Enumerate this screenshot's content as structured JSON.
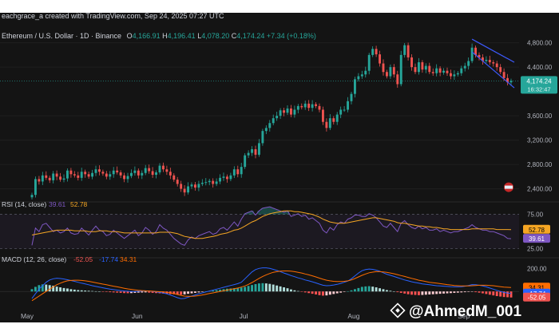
{
  "header": {
    "meta": "eachgrace_a created with TradingView.com, Sep 24, 2025 07:27 UTC",
    "symbol": "Ethereum / U.S. Dollar · 1D · Binance",
    "o_label": "O",
    "o_value": "4,166.91",
    "h_label": "H",
    "h_value": "4,196.41",
    "l_label": "L",
    "l_value": "4,078.20",
    "c_label": "C",
    "c_value": "4,174.24",
    "change": "+7.34 (+0.18%)"
  },
  "colors": {
    "up": "#26a69a",
    "down": "#ef5350",
    "price_tag": "#26a69a",
    "rsi_line": "#7e57c2",
    "rsi_ma": "#f5a623",
    "macd_line": "#2962ff",
    "signal_line": "#ff6d00",
    "background": "#141414"
  },
  "chart_data": [
    {
      "type": "candlestick",
      "title": "Ethereum / U.S. Dollar · 1D · Binance",
      "y_ticks": [
        "4,800.00",
        "4,400.00",
        "3,600.00",
        "3,200.00",
        "2,800.00",
        "2,400.00"
      ],
      "y_tick_values": [
        4800,
        4400,
        3600,
        3200,
        2800,
        2400
      ],
      "ylim": [
        2250,
        4900
      ],
      "x_ticks": [
        "May",
        "Jun",
        "Jul",
        "Aug",
        "Sep"
      ],
      "last_price": "4,174.24",
      "countdown": "16:32:47",
      "closes": [
        2300,
        2560,
        2520,
        2620,
        2580,
        2540,
        2650,
        2600,
        2550,
        2570,
        2700,
        2640,
        2620,
        2580,
        2680,
        2640,
        2600,
        2660,
        2720,
        2680,
        2650,
        2600,
        2640,
        2700,
        2670,
        2620,
        2560,
        2610,
        2660,
        2700,
        2620,
        2660,
        2740,
        2690,
        2630,
        2670,
        2780,
        2720,
        2680,
        2620,
        2550,
        2480,
        2400,
        2340,
        2440,
        2470,
        2420,
        2480,
        2500,
        2510,
        2530,
        2480,
        2520,
        2580,
        2600,
        2560,
        2620,
        2720,
        2640,
        2760,
        2950,
        2990,
        3050,
        2960,
        3150,
        3350,
        3400,
        3480,
        3560,
        3600,
        3690,
        3650,
        3720,
        3620,
        3700,
        3760,
        3740,
        3800,
        3730,
        3790,
        3760,
        3700,
        3500,
        3400,
        3560,
        3500,
        3620,
        3700,
        3700,
        3840,
        3960,
        4200,
        4250,
        4280,
        4340,
        4600,
        4700,
        4610,
        4460,
        4320,
        4250,
        4400,
        4280,
        4120,
        4600,
        4760,
        4560,
        4400,
        4320,
        4480,
        4360,
        4420,
        4320,
        4300,
        4380,
        4310,
        4340,
        4300,
        4250,
        4280,
        4300,
        4380,
        4420,
        4500,
        4720,
        4600,
        4560,
        4500,
        4520,
        4480,
        4460,
        4400,
        4320,
        4220,
        4150,
        4174.24
      ]
    },
    {
      "type": "line",
      "title": "RSI (14, close)",
      "values_text": [
        "39.61",
        "52.78"
      ],
      "y_ticks": [
        "75.00",
        "25.00"
      ],
      "y_tick_values": [
        75,
        25
      ],
      "ylim": [
        20,
        85
      ],
      "tags": [
        {
          "label": "52.78",
          "value": 52.78
        },
        {
          "label": "39.61",
          "value": 39.61
        }
      ],
      "series": [
        {
          "name": "RSI",
          "values": [
            30,
            55,
            50,
            60,
            62,
            56,
            50,
            52,
            48,
            50,
            55,
            48,
            46,
            47,
            55,
            50,
            45,
            52,
            58,
            52,
            50,
            44,
            46,
            52,
            48,
            44,
            40,
            44,
            48,
            52,
            44,
            48,
            56,
            52,
            46,
            50,
            60,
            55,
            52,
            46,
            40,
            36,
            32,
            30,
            38,
            42,
            40,
            44,
            46,
            48,
            50,
            46,
            48,
            54,
            56,
            52,
            58,
            64,
            58,
            68,
            76,
            78,
            80,
            74,
            80,
            84,
            85,
            86,
            84,
            82,
            80,
            78,
            80,
            72,
            74,
            76,
            72,
            74,
            68,
            70,
            66,
            62,
            52,
            48,
            56,
            52,
            60,
            64,
            62,
            68,
            70,
            74,
            74,
            72,
            72,
            76,
            74,
            70,
            64,
            58,
            56,
            62,
            56,
            50,
            62,
            66,
            60,
            56,
            54,
            58,
            54,
            56,
            52,
            52,
            54,
            50,
            52,
            50,
            48,
            50,
            50,
            52,
            54,
            56,
            60,
            56,
            54,
            52,
            52,
            50,
            50,
            48,
            46,
            44,
            40,
            39.61
          ]
        },
        {
          "name": "RSI-based MA",
          "values": [
            45,
            46,
            47,
            48,
            49,
            50,
            51,
            52,
            52,
            52,
            52,
            52,
            51,
            51,
            51,
            51,
            50,
            50,
            50,
            51,
            51,
            51,
            50,
            50,
            50,
            49,
            48,
            48,
            48,
            48,
            48,
            48,
            48,
            48,
            48,
            48,
            49,
            49,
            49,
            49,
            48,
            47,
            45,
            43,
            42,
            41,
            40,
            40,
            40,
            41,
            42,
            43,
            44,
            46,
            47,
            48,
            50,
            52,
            53,
            55,
            58,
            61,
            64,
            66,
            69,
            72,
            74,
            76,
            77,
            78,
            79,
            80,
            80,
            80,
            79,
            79,
            78,
            77,
            76,
            75,
            73,
            71,
            68,
            66,
            64,
            63,
            62,
            62,
            62,
            63,
            64,
            65,
            66,
            67,
            68,
            69,
            70,
            70,
            69,
            68,
            67,
            66,
            65,
            63,
            62,
            62,
            61,
            60,
            59,
            58,
            58,
            57,
            57,
            56,
            56,
            55,
            54,
            54,
            53,
            53,
            53,
            53,
            53,
            53,
            54,
            54,
            54,
            54,
            54,
            54,
            54,
            53,
            53,
            53,
            53,
            52.78
          ]
        }
      ]
    },
    {
      "type": "bar",
      "title": "MACD (12, 26, close)",
      "values_text": [
        "-52.05",
        "-17.74",
        "34.31"
      ],
      "y_ticks": [
        "200.00"
      ],
      "y_tick_values": [
        200
      ],
      "ylim": [
        -130,
        230
      ],
      "x_ticks": [
        "May",
        "Jun",
        "Jul",
        "Aug",
        "Sep"
      ],
      "tags": [
        {
          "label": "34.31",
          "value": 34.31
        },
        {
          "label": "-17.74",
          "value": -17.74
        },
        {
          "label": "-52.05",
          "value": -52.05
        }
      ],
      "series": [
        {
          "name": "Histogram",
          "values": [
            20,
            40,
            55,
            62,
            60,
            55,
            50,
            42,
            36,
            30,
            26,
            20,
            16,
            12,
            10,
            8,
            6,
            4,
            2,
            0,
            -2,
            -4,
            -6,
            -8,
            -10,
            -12,
            -14,
            -15,
            -14,
            -12,
            -10,
            -9,
            -8,
            -10,
            -12,
            -14,
            -16,
            -18,
            -20,
            -22,
            -24,
            -26,
            -28,
            -25,
            -20,
            -16,
            -12,
            -8,
            -4,
            0,
            4,
            8,
            12,
            16,
            20,
            24,
            26,
            28,
            30,
            34,
            40,
            48,
            56,
            64,
            70,
            72,
            70,
            66,
            60,
            52,
            44,
            36,
            28,
            18,
            10,
            4,
            -2,
            -8,
            -14,
            -20,
            -26,
            -32,
            -36,
            -34,
            -28,
            -22,
            -16,
            -10,
            -4,
            2,
            10,
            20,
            30,
            40,
            44,
            46,
            42,
            36,
            28,
            20,
            12,
            6,
            0,
            -6,
            -12,
            -18,
            -24,
            -28,
            -30,
            -32,
            -30,
            -28,
            -26,
            -24,
            -22,
            -20,
            -18,
            -16,
            -14,
            -12,
            -10,
            -8,
            -6,
            -4,
            -2,
            -6,
            -10,
            -16,
            -22,
            -28,
            -34,
            -40,
            -44,
            -48,
            -50,
            -52.05
          ]
        },
        {
          "name": "MACD",
          "values": [
            -60,
            -20,
            20,
            50,
            80,
            100,
            110,
            115,
            112,
            108,
            102,
            95,
            88,
            80,
            72,
            65,
            58,
            50,
            44,
            38,
            32,
            26,
            20,
            16,
            12,
            8,
            4,
            2,
            0,
            0,
            2,
            4,
            6,
            4,
            0,
            -4,
            -8,
            -14,
            -20,
            -30,
            -42,
            -54,
            -62,
            -60,
            -50,
            -40,
            -30,
            -20,
            -12,
            -4,
            4,
            12,
            20,
            28,
            36,
            44,
            52,
            60,
            68,
            80,
            110,
            140,
            170,
            190,
            200,
            205,
            205,
            200,
            192,
            182,
            172,
            160,
            150,
            138,
            128,
            118,
            110,
            100,
            92,
            84,
            74,
            64,
            54,
            50,
            52,
            56,
            62,
            70,
            80,
            90,
            110,
            135,
            160,
            180,
            190,
            195,
            192,
            185,
            175,
            162,
            150,
            140,
            130,
            120,
            110,
            100,
            92,
            84,
            78,
            72,
            66,
            62,
            58,
            54,
            50,
            48,
            46,
            44,
            42,
            40,
            40,
            42,
            46,
            52,
            60,
            58,
            54,
            48,
            40,
            30,
            20,
            10,
            0,
            -8,
            -14,
            -17.74
          ]
        },
        {
          "name": "Signal",
          "values": [
            -80,
            -60,
            -40,
            -20,
            0,
            20,
            40,
            58,
            72,
            84,
            92,
            96,
            98,
            98,
            96,
            92,
            88,
            82,
            76,
            70,
            64,
            58,
            52,
            46,
            40,
            34,
            28,
            22,
            18,
            14,
            10,
            8,
            6,
            4,
            2,
            0,
            -2,
            -4,
            -8,
            -12,
            -18,
            -26,
            -34,
            -40,
            -42,
            -42,
            -40,
            -36,
            -30,
            -24,
            -18,
            -12,
            -6,
            0,
            6,
            12,
            18,
            24,
            30,
            38,
            48,
            62,
            78,
            96,
            114,
            130,
            144,
            156,
            166,
            172,
            176,
            178,
            178,
            176,
            172,
            166,
            160,
            152,
            144,
            136,
            126,
            116,
            106,
            98,
            92,
            88,
            86,
            86,
            88,
            92,
            100,
            112,
            126,
            140,
            152,
            162,
            168,
            172,
            172,
            170,
            166,
            160,
            154,
            146,
            138,
            130,
            122,
            114,
            106,
            98,
            92,
            86,
            80,
            76,
            72,
            68,
            64,
            60,
            56,
            52,
            50,
            48,
            48,
            48,
            50,
            52,
            54,
            54,
            54,
            52,
            50,
            46,
            42,
            38,
            36,
            34.31
          ]
        }
      ]
    }
  ],
  "watermark": {
    "text": "@AhmedM_001",
    "logo": "binance-logo"
  }
}
